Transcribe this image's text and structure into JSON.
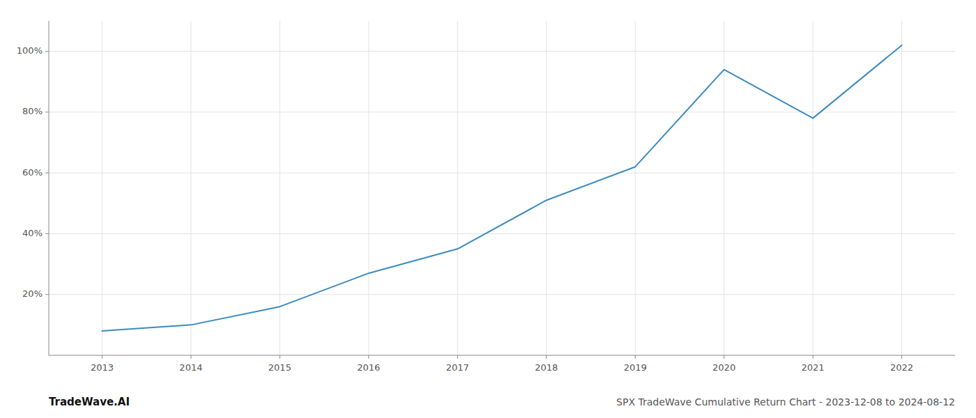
{
  "chart_data": {
    "type": "line",
    "title": "SPX TradeWave Cumulative Return Chart - 2023-12-08 to 2024-08-12",
    "annotations": [
      "TradeWave.AI"
    ],
    "x": [
      2013,
      2014,
      2015,
      2016,
      2017,
      2018,
      2019,
      2020,
      2021,
      2022
    ],
    "values": [
      0.08,
      0.1,
      0.16,
      0.27,
      0.35,
      0.51,
      0.62,
      0.94,
      0.78,
      1.02
    ],
    "color": "#3a8abf",
    "xlim": [
      2012.4,
      2022.6
    ],
    "xticks": [
      2013,
      2014,
      2015,
      2016,
      2017,
      2018,
      2019,
      2020,
      2021,
      2022
    ],
    "ylim": [
      0.0,
      1.1
    ],
    "yticks": [
      {
        "value": 0.2,
        "label": "20%"
      },
      {
        "value": 0.4,
        "label": "40%"
      },
      {
        "value": 0.6,
        "label": "60%"
      },
      {
        "value": 0.8,
        "label": "80%"
      },
      {
        "value": 1.0,
        "label": "100%"
      }
    ],
    "grid": true
  }
}
